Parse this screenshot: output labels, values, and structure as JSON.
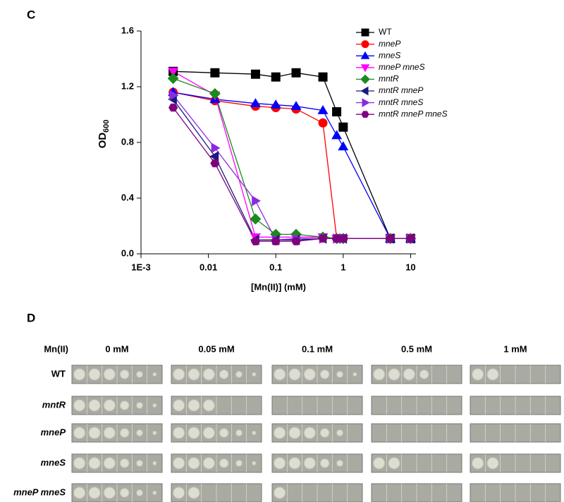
{
  "panel_c_label": "C",
  "chart_data": {
    "type": "line",
    "x_label": "[Mn(II)] (mM)",
    "y_label": {
      "text": "OD",
      "subscript": "600"
    },
    "xscale": "log",
    "xlim": [
      0.001,
      12
    ],
    "xticks": [
      {
        "value": 0.001,
        "label": "1E-3"
      },
      0.01,
      0.1,
      1,
      10
    ],
    "ylim": [
      0,
      1.6
    ],
    "yticks": [
      {
        "value": 0,
        "label": "0.0"
      },
      0.4,
      0.8,
      1.2,
      1.6
    ],
    "legend": "upper right",
    "series": [
      {
        "name": "WT",
        "color": "#000000",
        "marker": "square",
        "italic": false,
        "x": [
          0.003,
          0.0125,
          0.05,
          0.1,
          0.2,
          0.5,
          0.8,
          1,
          5,
          10
        ],
        "values": [
          1.31,
          1.3,
          1.29,
          1.27,
          1.3,
          1.27,
          1.02,
          0.91,
          0.11,
          0.11
        ]
      },
      {
        "name": "mneP",
        "color": "#ff0000",
        "marker": "circle",
        "italic": true,
        "x": [
          0.003,
          0.0125,
          0.05,
          0.1,
          0.2,
          0.5,
          0.8,
          1,
          5,
          10
        ],
        "values": [
          1.16,
          1.1,
          1.06,
          1.05,
          1.04,
          0.94,
          0.11,
          0.11,
          0.11,
          0.11
        ]
      },
      {
        "name": "mneS",
        "color": "#0000ff",
        "marker": "triangle-up",
        "italic": true,
        "x": [
          0.003,
          0.0125,
          0.05,
          0.1,
          0.2,
          0.5,
          0.8,
          1,
          5,
          10
        ],
        "values": [
          1.16,
          1.11,
          1.08,
          1.07,
          1.06,
          1.03,
          0.85,
          0.77,
          0.11,
          0.11
        ]
      },
      {
        "name": "mneP mneS",
        "color": "#ff00ff",
        "marker": "triangle-down",
        "italic": true,
        "x": [
          0.003,
          0.0125,
          0.05,
          0.1,
          0.2,
          0.5,
          0.8,
          1,
          5,
          10
        ],
        "values": [
          1.31,
          1.14,
          0.12,
          0.12,
          0.12,
          0.12,
          0.11,
          0.11,
          0.11,
          0.11
        ]
      },
      {
        "name": "mntR",
        "color": "#1a8a1a",
        "marker": "diamond",
        "italic": true,
        "x": [
          0.003,
          0.0125,
          0.05,
          0.1,
          0.2,
          0.5,
          0.8,
          1,
          5,
          10
        ],
        "values": [
          1.26,
          1.15,
          0.25,
          0.14,
          0.14,
          0.12,
          0.11,
          0.11,
          0.11,
          0.11
        ]
      },
      {
        "name": "mntR mneP",
        "color": "#1a1a80",
        "marker": "triangle-left",
        "italic": true,
        "x": [
          0.003,
          0.0125,
          0.05,
          0.1,
          0.2,
          0.5,
          0.8,
          1,
          5,
          10
        ],
        "values": [
          1.11,
          0.7,
          0.1,
          0.1,
          0.1,
          0.11,
          0.11,
          0.11,
          0.11,
          0.11
        ]
      },
      {
        "name": "mntR mneS",
        "color": "#8a2be2",
        "marker": "triangle-right",
        "italic": true,
        "x": [
          0.003,
          0.0125,
          0.05,
          0.1,
          0.2,
          0.5,
          0.8,
          1,
          5,
          10
        ],
        "values": [
          1.14,
          0.76,
          0.38,
          0.1,
          0.11,
          0.11,
          0.11,
          0.11,
          0.11,
          0.11
        ]
      },
      {
        "name": "mntR mneP mneS",
        "color": "#800080",
        "marker": "hexagon",
        "italic": true,
        "x": [
          0.003,
          0.0125,
          0.05,
          0.1,
          0.2,
          0.5,
          0.8,
          1,
          5,
          10
        ],
        "values": [
          1.05,
          0.65,
          0.09,
          0.09,
          0.09,
          0.11,
          0.11,
          0.11,
          0.11,
          0.11
        ]
      }
    ]
  },
  "panel_d": {
    "label": "D",
    "row_header": "Mn(II)",
    "columns": [
      "0 mM",
      "0.05 mM",
      "0.1 mM",
      "0.5 mM",
      "1 mM"
    ],
    "rows": [
      {
        "text": "WT",
        "italic": false
      },
      {
        "text": "mntR",
        "italic": true
      },
      {
        "text": "mneP",
        "italic": true
      },
      {
        "text": "mneS",
        "italic": true
      },
      {
        "text": "mneP mneS",
        "italic": true
      }
    ]
  }
}
